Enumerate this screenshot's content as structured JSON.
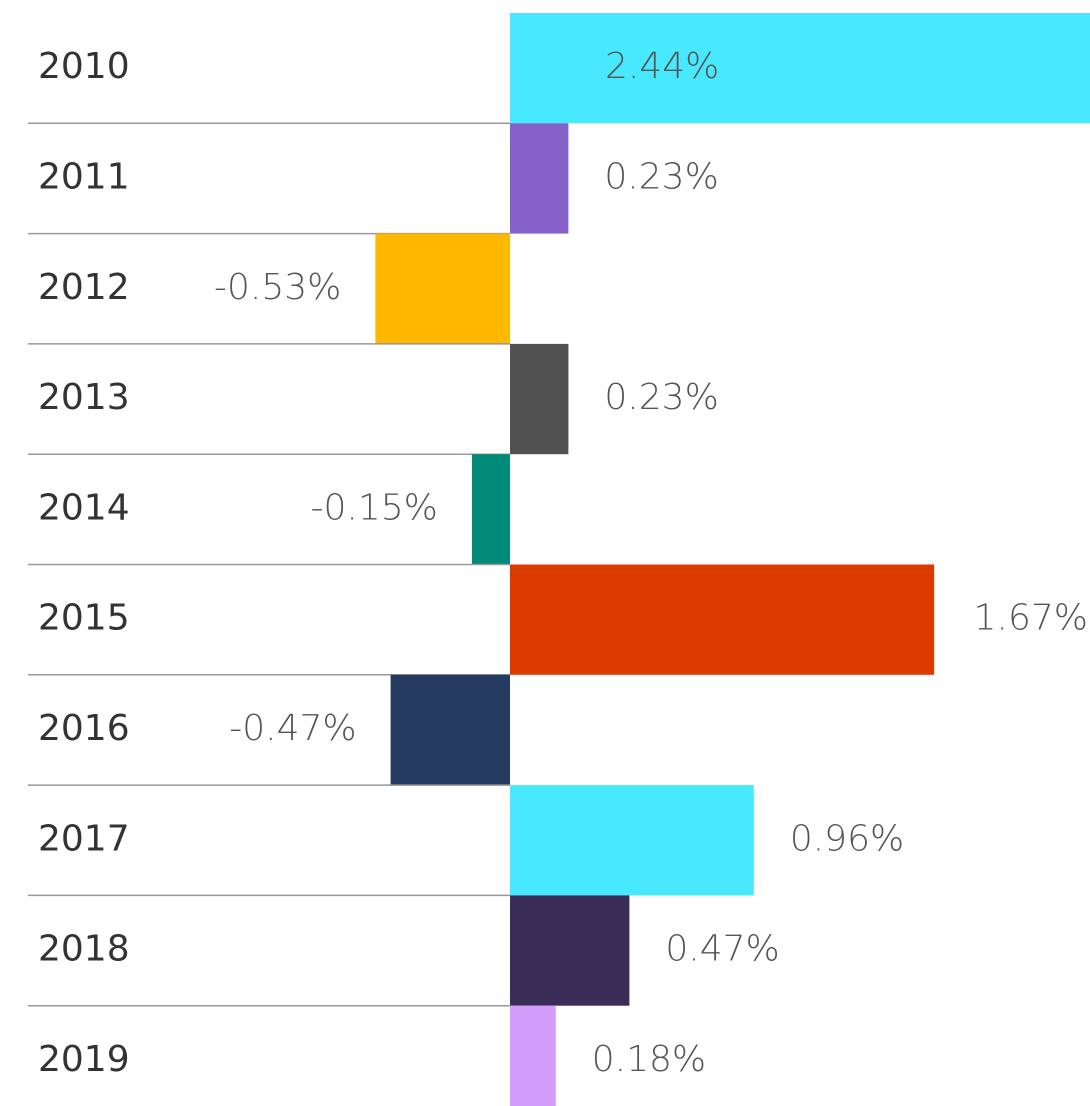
{
  "chart_data": {
    "type": "bar",
    "categories": [
      "2010",
      "2011",
      "2012",
      "2013",
      "2014",
      "2015",
      "2016",
      "2017",
      "2018",
      "2019"
    ],
    "values": [
      2.44,
      0.23,
      -0.53,
      0.23,
      -0.15,
      1.67,
      -0.47,
      0.96,
      0.47,
      0.18
    ],
    "value_labels": [
      "2.44%",
      "0.23%",
      "-0.53%",
      "0.23%",
      "-0.15%",
      "1.67%",
      "-0.47%",
      "0.96%",
      "0.47%",
      "0.18%"
    ],
    "colors": [
      "#48e8fe",
      "#8661c9",
      "#feb800",
      "#515151",
      "#008a77",
      "#dc3b00",
      "#243a5e",
      "#48e8fe",
      "#3a2d57",
      "#d59dfb"
    ]
  }
}
